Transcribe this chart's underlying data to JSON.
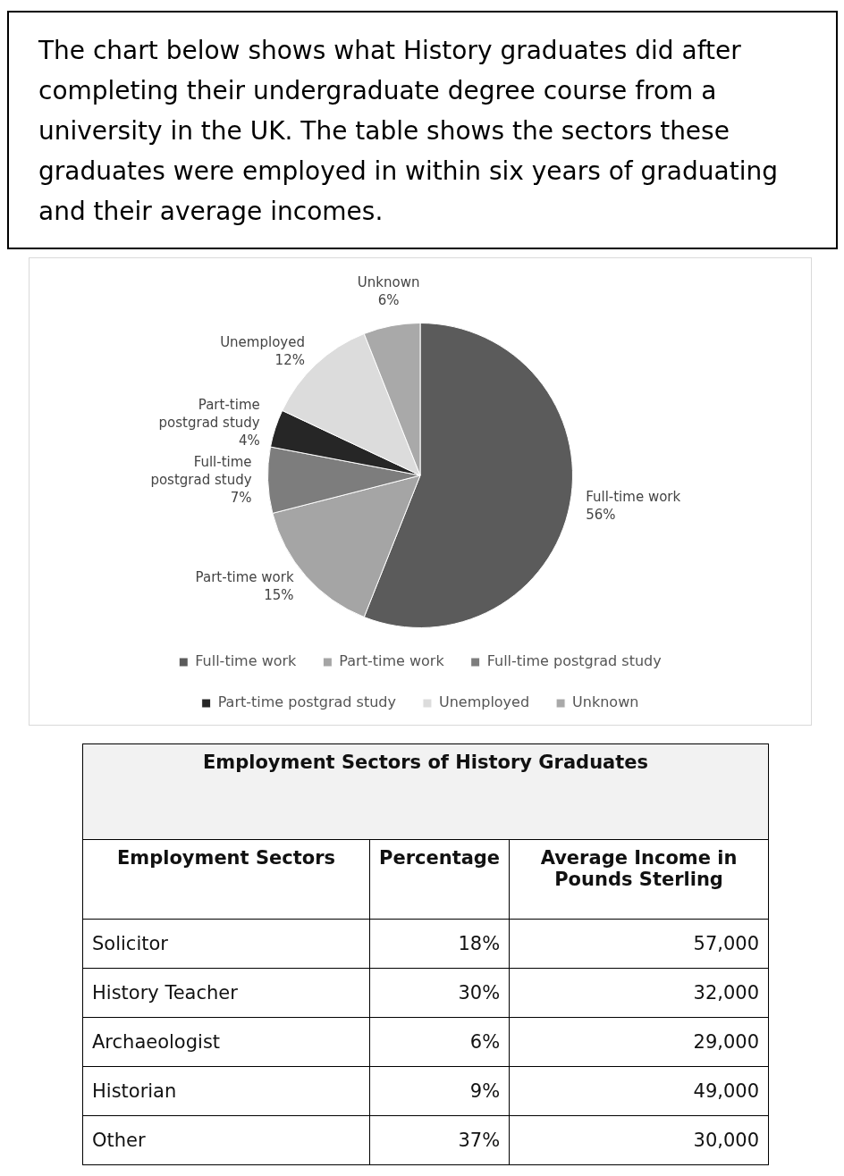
{
  "chart_data": [
    {
      "type": "pie",
      "title": "The chart below shows what History graduates did after completing their undergraduate degree course from a university in the UK. The table shows the sectors these graduates were employed in within six years of graduating and their average incomes.",
      "categories": [
        "Full-time work",
        "Part-time work",
        "Full-time postgrad study",
        "Part-time postgrad study",
        "Unemployed",
        "Unknown"
      ],
      "values": [
        56,
        15,
        7,
        4,
        12,
        6
      ],
      "value_labels": [
        "56%",
        "15%",
        "7%",
        "4%",
        "12%",
        "6%"
      ],
      "colors": [
        "#5b5b5b",
        "#a5a5a5",
        "#7d7d7d",
        "#262626",
        "#dcdcdc",
        "#a9a9a9"
      ],
      "legend": "bottom"
    },
    {
      "type": "other",
      "title": "Employment Sectors of History Graduates",
      "xlabel": "Employment Sectors",
      "categories": [
        "Solicitor",
        "History Teacher",
        "Archaeologist",
        "Historian",
        "Other"
      ],
      "series": [
        {
          "name": "Percentage",
          "values": [
            18,
            30,
            6,
            9,
            37
          ],
          "value_labels": [
            "18%",
            "30%",
            "6%",
            "9%",
            "37%"
          ]
        },
        {
          "name": "Average Income in Pounds Sterling",
          "values": [
            57000,
            32000,
            29000,
            49000,
            30000
          ],
          "value_labels": [
            "57,000",
            "32,000",
            "29,000",
            "49,000",
            "30,000"
          ]
        }
      ]
    }
  ]
}
